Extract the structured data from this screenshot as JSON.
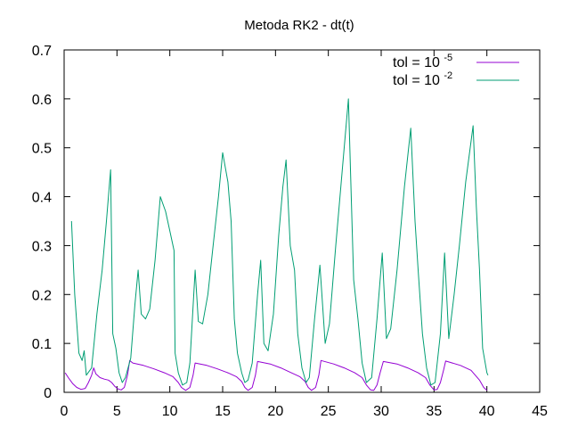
{
  "chart_data": {
    "type": "line",
    "title": "Metoda RK2 - dt(t)",
    "xlabel": "",
    "ylabel": "",
    "xlim": [
      0,
      45
    ],
    "ylim": [
      0,
      0.7
    ],
    "x_ticks": [
      "0",
      "5",
      "10",
      "15",
      "20",
      "25",
      "30",
      "35",
      "40",
      "45"
    ],
    "y_ticks": [
      "0",
      "0.1",
      "0.2",
      "0.3",
      "0.4",
      "0.5",
      "0.6",
      "0.7"
    ],
    "grid": false,
    "legend_position": "top-right",
    "series": [
      {
        "name_base": "tol = 10",
        "name_exp": "-5",
        "color": "#9400d3",
        "points": [
          [
            0.1,
            0.04
          ],
          [
            0.4,
            0.03
          ],
          [
            0.8,
            0.018
          ],
          [
            1.2,
            0.01
          ],
          [
            1.6,
            0.006
          ],
          [
            2.0,
            0.008
          ],
          [
            2.3,
            0.02
          ],
          [
            2.6,
            0.035
          ],
          [
            2.8,
            0.05
          ],
          [
            3.0,
            0.038
          ],
          [
            3.4,
            0.03
          ],
          [
            3.8,
            0.027
          ],
          [
            4.2,
            0.025
          ],
          [
            4.5,
            0.02
          ],
          [
            4.8,
            0.012
          ],
          [
            5.1,
            0.007
          ],
          [
            5.4,
            0.005
          ],
          [
            5.7,
            0.01
          ],
          [
            6.0,
            0.035
          ],
          [
            6.2,
            0.065
          ],
          [
            6.5,
            0.06
          ],
          [
            7.5,
            0.055
          ],
          [
            8.5,
            0.048
          ],
          [
            9.5,
            0.04
          ],
          [
            10.3,
            0.032
          ],
          [
            10.8,
            0.02
          ],
          [
            11.1,
            0.01
          ],
          [
            11.5,
            0.004
          ],
          [
            11.9,
            0.01
          ],
          [
            12.2,
            0.035
          ],
          [
            12.4,
            0.06
          ],
          [
            13.5,
            0.055
          ],
          [
            14.5,
            0.048
          ],
          [
            15.5,
            0.04
          ],
          [
            16.3,
            0.032
          ],
          [
            16.8,
            0.022
          ],
          [
            17.1,
            0.01
          ],
          [
            17.4,
            0.004
          ],
          [
            17.8,
            0.01
          ],
          [
            18.1,
            0.035
          ],
          [
            18.3,
            0.063
          ],
          [
            19.5,
            0.058
          ],
          [
            20.5,
            0.05
          ],
          [
            21.5,
            0.04
          ],
          [
            22.3,
            0.032
          ],
          [
            22.8,
            0.022
          ],
          [
            23.1,
            0.01
          ],
          [
            23.4,
            0.004
          ],
          [
            23.8,
            0.01
          ],
          [
            24.1,
            0.035
          ],
          [
            24.3,
            0.065
          ],
          [
            25.5,
            0.058
          ],
          [
            26.5,
            0.05
          ],
          [
            27.5,
            0.04
          ],
          [
            28.2,
            0.03
          ],
          [
            28.6,
            0.015
          ],
          [
            29.0,
            0.005
          ],
          [
            29.3,
            0.004
          ],
          [
            29.6,
            0.015
          ],
          [
            29.9,
            0.04
          ],
          [
            30.2,
            0.063
          ],
          [
            31.5,
            0.058
          ],
          [
            32.5,
            0.05
          ],
          [
            33.5,
            0.04
          ],
          [
            34.2,
            0.03
          ],
          [
            34.6,
            0.015
          ],
          [
            35.0,
            0.005
          ],
          [
            35.3,
            0.006
          ],
          [
            35.6,
            0.02
          ],
          [
            35.9,
            0.045
          ],
          [
            36.1,
            0.064
          ],
          [
            37.5,
            0.055
          ],
          [
            38.5,
            0.045
          ],
          [
            39.3,
            0.025
          ],
          [
            39.7,
            0.01
          ],
          [
            40.0,
            0.004
          ]
        ]
      },
      {
        "name_base": "tol = 10",
        "name_exp": "-2",
        "color": "#009e73",
        "points": [
          [
            0.7,
            0.35
          ],
          [
            1.0,
            0.2
          ],
          [
            1.4,
            0.08
          ],
          [
            1.7,
            0.065
          ],
          [
            1.9,
            0.085
          ],
          [
            2.1,
            0.035
          ],
          [
            2.6,
            0.05
          ],
          [
            3.1,
            0.16
          ],
          [
            3.6,
            0.25
          ],
          [
            4.0,
            0.35
          ],
          [
            4.4,
            0.455
          ],
          [
            4.6,
            0.12
          ],
          [
            4.9,
            0.09
          ],
          [
            5.2,
            0.04
          ],
          [
            5.5,
            0.02
          ],
          [
            5.8,
            0.03
          ],
          [
            6.3,
            0.07
          ],
          [
            6.7,
            0.18
          ],
          [
            7.0,
            0.25
          ],
          [
            7.3,
            0.16
          ],
          [
            7.7,
            0.15
          ],
          [
            8.1,
            0.17
          ],
          [
            8.6,
            0.27
          ],
          [
            9.1,
            0.4
          ],
          [
            9.6,
            0.37
          ],
          [
            10.0,
            0.33
          ],
          [
            10.4,
            0.29
          ],
          [
            10.5,
            0.08
          ],
          [
            10.8,
            0.04
          ],
          [
            11.2,
            0.015
          ],
          [
            11.6,
            0.02
          ],
          [
            11.9,
            0.06
          ],
          [
            12.4,
            0.25
          ],
          [
            12.7,
            0.145
          ],
          [
            13.1,
            0.14
          ],
          [
            13.6,
            0.2
          ],
          [
            14.1,
            0.3
          ],
          [
            14.6,
            0.4
          ],
          [
            15.0,
            0.49
          ],
          [
            15.5,
            0.43
          ],
          [
            15.8,
            0.35
          ],
          [
            16.1,
            0.15
          ],
          [
            16.4,
            0.08
          ],
          [
            16.8,
            0.04
          ],
          [
            17.1,
            0.02
          ],
          [
            17.4,
            0.025
          ],
          [
            17.8,
            0.06
          ],
          [
            18.3,
            0.2
          ],
          [
            18.6,
            0.27
          ],
          [
            18.9,
            0.1
          ],
          [
            19.3,
            0.085
          ],
          [
            19.8,
            0.16
          ],
          [
            20.3,
            0.32
          ],
          [
            20.7,
            0.42
          ],
          [
            21.0,
            0.475
          ],
          [
            21.4,
            0.3
          ],
          [
            21.8,
            0.25
          ],
          [
            22.1,
            0.12
          ],
          [
            22.5,
            0.05
          ],
          [
            22.9,
            0.02
          ],
          [
            23.2,
            0.03
          ],
          [
            23.7,
            0.15
          ],
          [
            24.2,
            0.26
          ],
          [
            24.7,
            0.1
          ],
          [
            25.1,
            0.14
          ],
          [
            25.7,
            0.3
          ],
          [
            26.3,
            0.45
          ],
          [
            26.9,
            0.6
          ],
          [
            27.4,
            0.23
          ],
          [
            27.8,
            0.15
          ],
          [
            28.2,
            0.06
          ],
          [
            28.6,
            0.02
          ],
          [
            29.1,
            0.03
          ],
          [
            29.6,
            0.15
          ],
          [
            30.1,
            0.285
          ],
          [
            30.5,
            0.11
          ],
          [
            30.9,
            0.13
          ],
          [
            31.5,
            0.25
          ],
          [
            32.2,
            0.42
          ],
          [
            32.8,
            0.54
          ],
          [
            33.2,
            0.35
          ],
          [
            33.5,
            0.25
          ],
          [
            33.9,
            0.12
          ],
          [
            34.3,
            0.05
          ],
          [
            34.7,
            0.015
          ],
          [
            35.1,
            0.02
          ],
          [
            35.6,
            0.12
          ],
          [
            36.0,
            0.285
          ],
          [
            36.4,
            0.11
          ],
          [
            36.9,
            0.2
          ],
          [
            37.4,
            0.3
          ],
          [
            38.0,
            0.43
          ],
          [
            38.7,
            0.545
          ],
          [
            39.0,
            0.38
          ],
          [
            39.3,
            0.25
          ],
          [
            39.6,
            0.09
          ],
          [
            40.0,
            0.04
          ],
          [
            40.1,
            0.035
          ]
        ]
      }
    ]
  }
}
